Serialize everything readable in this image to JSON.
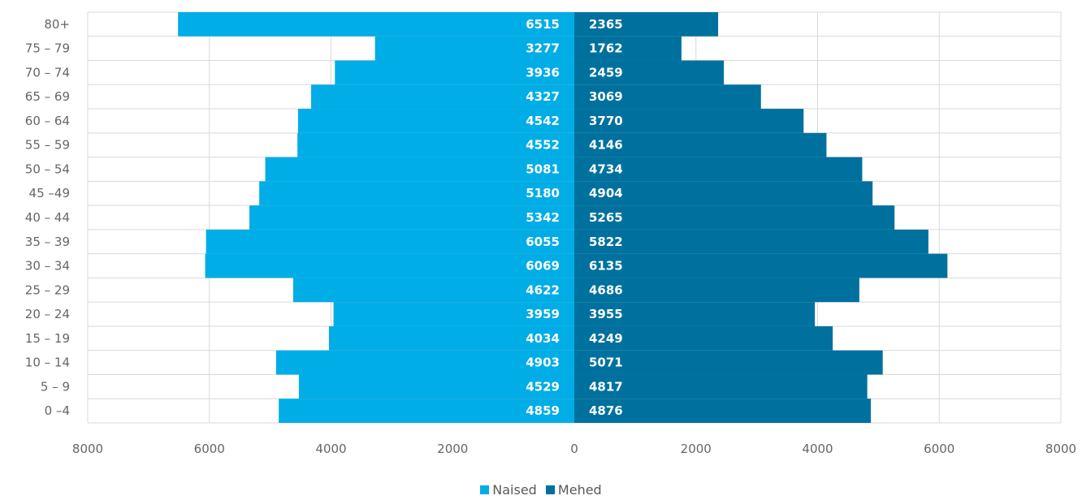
{
  "chart_data": {
    "type": "bar",
    "orientation": "horizontal",
    "layout": "population-pyramid",
    "categories": [
      "0 –4",
      "5 – 9",
      "10 – 14",
      "15 – 19",
      "20 – 24",
      "25 – 29",
      "30 – 34",
      "35 – 39",
      "40 – 44",
      "45 –49",
      "50 – 54",
      "55 – 59",
      "60 – 64",
      "65 – 69",
      "70 – 74",
      "75 – 79",
      "80+"
    ],
    "series": [
      {
        "name": "Naised",
        "color": "#00ade6",
        "side": "left",
        "values": [
          4859,
          4529,
          4903,
          4034,
          3959,
          4622,
          6069,
          6055,
          5342,
          5180,
          5081,
          4552,
          4542,
          4327,
          3936,
          3277,
          6515
        ]
      },
      {
        "name": "Mehed",
        "color": "#00719e",
        "side": "right",
        "values": [
          4876,
          4817,
          5071,
          4249,
          3955,
          4686,
          6135,
          5822,
          5265,
          4904,
          4734,
          4146,
          3770,
          3069,
          2459,
          1762,
          2365
        ]
      }
    ],
    "x_ticks": [
      "8000",
      "6000",
      "4000",
      "2000",
      "0",
      "2000",
      "4000",
      "6000",
      "8000"
    ],
    "xlim": [
      -8000,
      8000
    ],
    "grid": true,
    "legend_position": "bottom",
    "data_labels": true
  }
}
